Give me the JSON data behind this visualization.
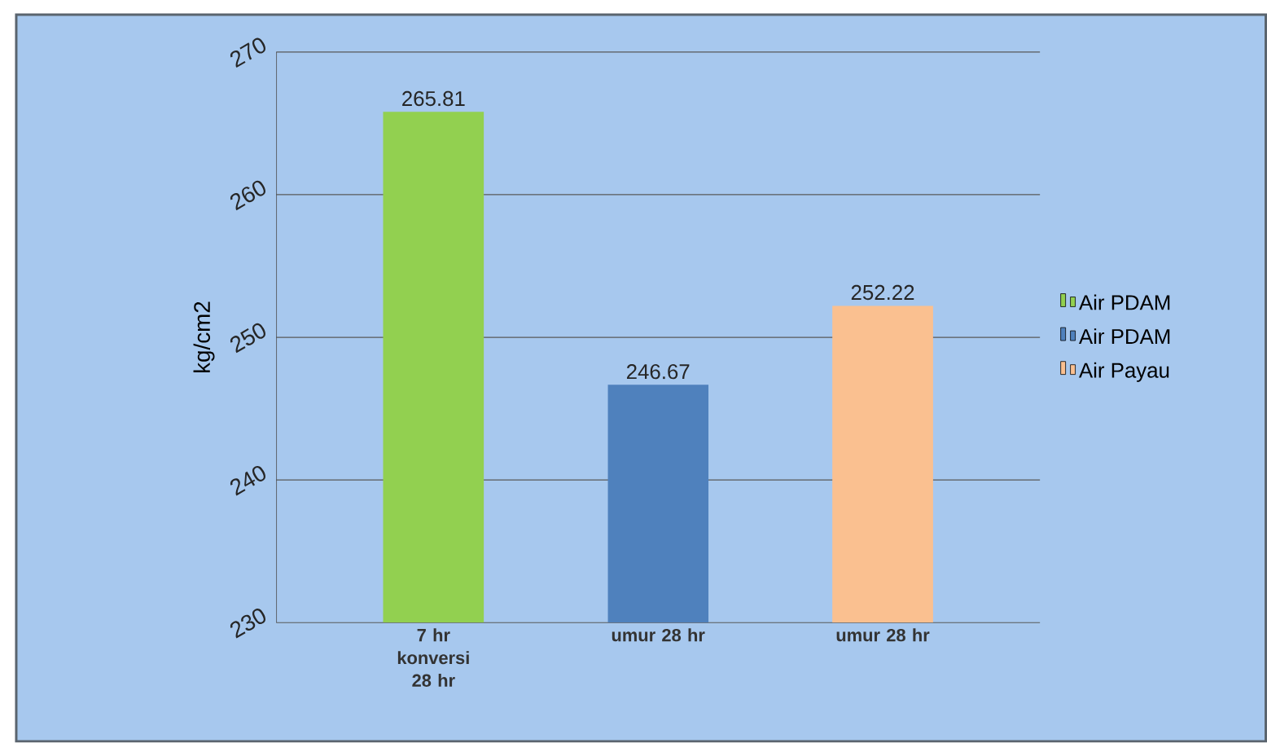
{
  "chart_data": {
    "type": "bar",
    "ylabel": "kg/cm2",
    "categories": [
      "7 hr konversi 28 hr",
      "umur 28 hr",
      "umur 28 hr"
    ],
    "series": [
      {
        "name": "Air PDAM",
        "color": "#92d050",
        "values": [
          265.81,
          null,
          null
        ]
      },
      {
        "name": "Air PDAM",
        "color": "#4f81bd",
        "values": [
          null,
          246.67,
          null
        ]
      },
      {
        "name": "Air Payau",
        "color": "#fac090",
        "values": [
          null,
          null,
          252.22
        ]
      }
    ],
    "ylim": [
      230,
      270
    ],
    "yticks": [
      230,
      240,
      250,
      260,
      270
    ],
    "grid": "y",
    "legend": "right",
    "data_labels": true
  }
}
